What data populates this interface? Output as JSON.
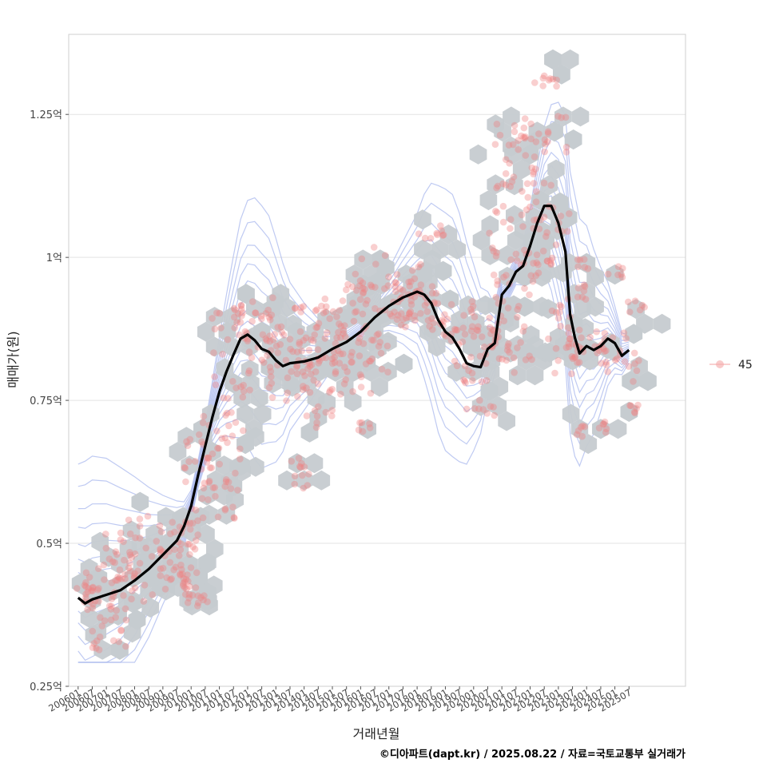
{
  "chart_data": {
    "type": "scatter",
    "xlabel": "거래년월",
    "ylabel": "매매가(원)",
    "caption": "©디아파트(dapt.kr) / 2025.08.22 / 자료=국토교통부 실거래가",
    "ylim": [
      0.25,
      1.39
    ],
    "y_ticks": [
      {
        "value": 0.25,
        "label": "0.25억"
      },
      {
        "value": 0.5,
        "label": "0.5억"
      },
      {
        "value": 0.75,
        "label": "0.75억"
      },
      {
        "value": 1.0,
        "label": "1억"
      },
      {
        "value": 1.25,
        "label": "1.25억"
      }
    ],
    "x_range": [
      "2005-09",
      "2027-07"
    ],
    "x_ticks": [
      "200601",
      "200607",
      "200701",
      "200707",
      "200801",
      "200807",
      "200901",
      "200907",
      "201001",
      "201007",
      "201101",
      "201107",
      "201201",
      "201207",
      "201301",
      "201307",
      "201401",
      "201407",
      "201501",
      "201507",
      "201601",
      "201607",
      "201701",
      "201707",
      "201801",
      "201807",
      "201901",
      "201907",
      "202001",
      "202007",
      "202101",
      "202107",
      "202201",
      "202207",
      "202301",
      "202307",
      "202401",
      "202407",
      "202501",
      "202507"
    ],
    "legend": {
      "label": "45",
      "position": "right",
      "color": "#f4a7a7"
    },
    "colors": {
      "points": "#f08080",
      "trend": "#000000",
      "hex": "#c6cbd0",
      "contour": "#a9b8ee",
      "grid": "#e3e3e3"
    },
    "trend_line": {
      "name": "moving average",
      "points": [
        [
          "2006-01",
          0.405
        ],
        [
          "2006-04",
          0.395
        ],
        [
          "2006-07",
          0.402
        ],
        [
          "2007-01",
          0.41
        ],
        [
          "2007-07",
          0.418
        ],
        [
          "2008-01",
          0.435
        ],
        [
          "2008-07",
          0.455
        ],
        [
          "2009-01",
          0.48
        ],
        [
          "2009-07",
          0.505
        ],
        [
          "2009-10",
          0.53
        ],
        [
          "2010-01",
          0.565
        ],
        [
          "2010-04",
          0.62
        ],
        [
          "2010-07",
          0.67
        ],
        [
          "2010-10",
          0.72
        ],
        [
          "2011-01",
          0.765
        ],
        [
          "2011-04",
          0.8
        ],
        [
          "2011-07",
          0.83
        ],
        [
          "2011-10",
          0.858
        ],
        [
          "2012-01",
          0.865
        ],
        [
          "2012-04",
          0.855
        ],
        [
          "2012-07",
          0.84
        ],
        [
          "2012-10",
          0.835
        ],
        [
          "2013-01",
          0.82
        ],
        [
          "2013-04",
          0.81
        ],
        [
          "2013-07",
          0.815
        ],
        [
          "2014-01",
          0.818
        ],
        [
          "2014-07",
          0.825
        ],
        [
          "2015-01",
          0.84
        ],
        [
          "2015-07",
          0.852
        ],
        [
          "2016-01",
          0.87
        ],
        [
          "2016-07",
          0.895
        ],
        [
          "2017-01",
          0.915
        ],
        [
          "2017-07",
          0.93
        ],
        [
          "2018-01",
          0.94
        ],
        [
          "2018-04",
          0.935
        ],
        [
          "2018-07",
          0.92
        ],
        [
          "2018-10",
          0.89
        ],
        [
          "2019-01",
          0.87
        ],
        [
          "2019-04",
          0.86
        ],
        [
          "2019-07",
          0.84
        ],
        [
          "2019-10",
          0.815
        ],
        [
          "2020-01",
          0.81
        ],
        [
          "2020-04",
          0.808
        ],
        [
          "2020-07",
          0.84
        ],
        [
          "2020-10",
          0.85
        ],
        [
          "2021-01",
          0.935
        ],
        [
          "2021-04",
          0.95
        ],
        [
          "2021-07",
          0.975
        ],
        [
          "2021-10",
          0.985
        ],
        [
          "2022-01",
          1.02
        ],
        [
          "2022-04",
          1.06
        ],
        [
          "2022-07",
          1.09
        ],
        [
          "2022-10",
          1.09
        ],
        [
          "2023-01",
          1.06
        ],
        [
          "2023-04",
          1.01
        ],
        [
          "2023-06",
          0.9
        ],
        [
          "2023-08",
          0.86
        ],
        [
          "2023-10",
          0.832
        ],
        [
          "2024-01",
          0.845
        ],
        [
          "2024-04",
          0.838
        ],
        [
          "2024-07",
          0.845
        ],
        [
          "2024-10",
          0.858
        ],
        [
          "2025-01",
          0.85
        ],
        [
          "2025-04",
          0.828
        ],
        [
          "2025-07",
          0.838
        ]
      ]
    },
    "clusters": [
      [
        "2006-02",
        0.43,
        1.5
      ],
      [
        "2006-07",
        0.4,
        2.5
      ],
      [
        "2007-01",
        0.37,
        2.0
      ],
      [
        "2007-03",
        0.34,
        2.0
      ],
      [
        "2007-05",
        0.44,
        3.0
      ],
      [
        "2008-01",
        0.45,
        3.0
      ],
      [
        "2008-07",
        0.47,
        4.5
      ],
      [
        "2009-01",
        0.49,
        4.0
      ],
      [
        "2009-06",
        0.52,
        3.0
      ],
      [
        "2009-09",
        0.44,
        2.0
      ],
      [
        "2010-01",
        0.4,
        1.0
      ],
      [
        "2010-07",
        0.4,
        1.0
      ],
      [
        "2010-04",
        0.61,
        2.5
      ],
      [
        "2010-10",
        0.66,
        3.0
      ],
      [
        "2011-01",
        0.7,
        2.5
      ],
      [
        "2011-04",
        0.55,
        1.0
      ],
      [
        "2011-07",
        0.6,
        1.0
      ],
      [
        "2011-07",
        0.78,
        2.0
      ],
      [
        "2011-10",
        0.87,
        3.0
      ],
      [
        "2012-04",
        0.91,
        2.0
      ],
      [
        "2012-07",
        0.87,
        2.5
      ],
      [
        "2013-01",
        0.83,
        3.0
      ],
      [
        "2013-07",
        0.78,
        2.5
      ],
      [
        "2013-10",
        0.64,
        1.0
      ],
      [
        "2014-01",
        0.61,
        1.0
      ],
      [
        "2014-01",
        0.86,
        4.0
      ],
      [
        "2014-07",
        0.8,
        3.0
      ],
      [
        "2014-07",
        0.72,
        1.5
      ],
      [
        "2015-01",
        0.87,
        4.0
      ],
      [
        "2015-07",
        0.9,
        3.5
      ],
      [
        "2015-10",
        0.8,
        3.0
      ],
      [
        "2016-01",
        0.84,
        3.0
      ],
      [
        "2016-04",
        0.7,
        1.0
      ],
      [
        "2016-07",
        0.92,
        3.0
      ],
      [
        "2017-01",
        0.97,
        3.5
      ],
      [
        "2017-07",
        0.93,
        3.0
      ],
      [
        "2018-01",
        0.95,
        2.5
      ],
      [
        "2018-07",
        1.04,
        1.5
      ],
      [
        "2018-04",
        0.9,
        2.0
      ],
      [
        "2019-01",
        0.87,
        2.0
      ],
      [
        "2019-07",
        0.89,
        2.0
      ],
      [
        "2020-01",
        0.8,
        2.0
      ],
      [
        "2020-04",
        0.74,
        1.5
      ],
      [
        "2020-07",
        0.89,
        2.5
      ],
      [
        "2021-01",
        0.86,
        3.0
      ],
      [
        "2021-04",
        0.82,
        2.5
      ],
      [
        "2021-07",
        0.94,
        2.5
      ],
      [
        "2021-07",
        1.03,
        3.5
      ],
      [
        "2021-10",
        1.1,
        3.0
      ],
      [
        "2022-01",
        1.18,
        4.0
      ],
      [
        "2022-04",
        1.22,
        3.0
      ],
      [
        "2022-07",
        1.32,
        1.5
      ],
      [
        "2022-10",
        1.07,
        2.0
      ],
      [
        "2022-04",
        1.0,
        2.0
      ],
      [
        "2023-01",
        0.86,
        1.5
      ],
      [
        "2023-04",
        0.91,
        1.5
      ],
      [
        "2023-07",
        0.82,
        2.0
      ],
      [
        "2023-10",
        0.7,
        1.0
      ],
      [
        "2024-01",
        0.94,
        1.0
      ],
      [
        "2024-01",
        0.99,
        1.0
      ],
      [
        "2024-04",
        0.85,
        2.0
      ],
      [
        "2024-07",
        0.7,
        1.0
      ],
      [
        "2024-10",
        0.84,
        2.0
      ],
      [
        "2025-01",
        0.97,
        1.0
      ],
      [
        "2025-04",
        0.81,
        2.0
      ],
      [
        "2025-07",
        0.73,
        1.0
      ],
      [
        "2025-10",
        0.91,
        1.0
      ]
    ]
  }
}
